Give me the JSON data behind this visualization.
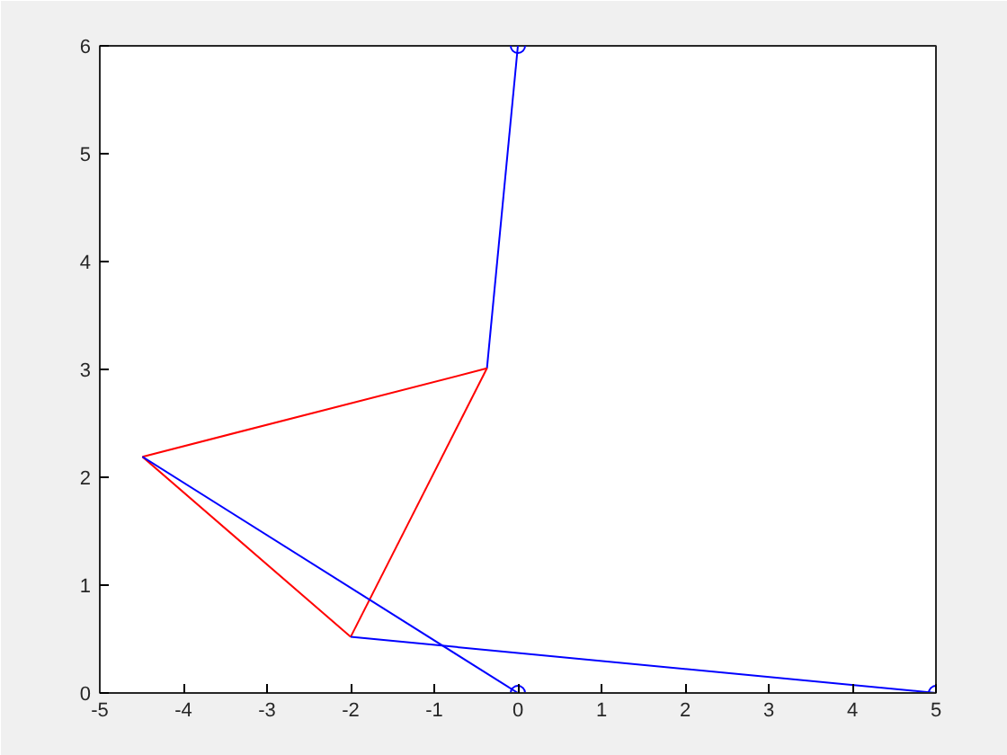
{
  "chart_data": {
    "type": "line",
    "xlim": [
      -5,
      5
    ],
    "ylim": [
      0,
      6
    ],
    "xticks": [
      -5,
      -4,
      -3,
      -2,
      -1,
      0,
      1,
      2,
      3,
      4,
      5
    ],
    "yticks": [
      0,
      1,
      2,
      3,
      4,
      5,
      6
    ],
    "grid": false,
    "marker": "none",
    "line_style": "solid",
    "series": [
      {
        "color": "#0000ff",
        "x": [
          0,
          -0.37
        ],
        "values": [
          6,
          3.01
        ]
      },
      {
        "color": "#ff0000",
        "x": [
          -4.49,
          -0.37
        ],
        "values": [
          2.19,
          3.01
        ]
      },
      {
        "color": "#ff0000",
        "x": [
          -4.49,
          -2.0
        ],
        "values": [
          2.19,
          0.52
        ]
      },
      {
        "color": "#ff0000",
        "x": [
          -2.0,
          -0.37
        ],
        "values": [
          0.52,
          3.01
        ]
      },
      {
        "color": "#0000ff",
        "x": [
          -4.49,
          0
        ],
        "values": [
          2.19,
          0
        ]
      },
      {
        "color": "#0000ff",
        "x": [
          -2.0,
          5
        ],
        "values": [
          0.52,
          0
        ]
      },
      {
        "type": "scatter",
        "marker": "circle",
        "color": "#0000ff",
        "x": [
          0,
          0,
          5
        ],
        "values": [
          6,
          0,
          0
        ]
      }
    ]
  }
}
